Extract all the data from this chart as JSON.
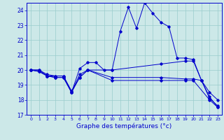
{
  "xlabel": "Graphe des températures (°c)",
  "xlim": [
    -0.5,
    23.5
  ],
  "ylim": [
    17,
    24.5
  ],
  "yticks": [
    17,
    18,
    19,
    20,
    21,
    22,
    23,
    24
  ],
  "xticks": [
    0,
    1,
    2,
    3,
    4,
    5,
    6,
    7,
    8,
    9,
    10,
    11,
    12,
    13,
    14,
    15,
    16,
    17,
    18,
    19,
    20,
    21,
    22,
    23
  ],
  "bg_color": "#cce8e8",
  "line_color": "#0000cc",
  "grid_color": "#99cccc",
  "lines": [
    {
      "x": [
        0,
        1,
        2,
        3,
        4,
        5,
        6,
        7,
        8,
        9,
        10,
        11,
        12,
        13,
        14,
        15,
        16,
        17,
        18,
        19,
        20,
        21,
        22,
        23
      ],
      "y": [
        20.0,
        19.9,
        19.6,
        19.6,
        19.6,
        18.5,
        20.1,
        20.5,
        20.5,
        20.0,
        20.0,
        22.6,
        24.2,
        22.8,
        24.5,
        23.8,
        23.2,
        22.9,
        20.8,
        20.8,
        20.7,
        19.3,
        18.5,
        18.0
      ]
    },
    {
      "x": [
        0,
        1,
        2,
        3,
        4,
        5,
        6,
        7,
        10,
        16,
        19,
        20,
        21,
        22,
        23
      ],
      "y": [
        20.0,
        19.9,
        19.6,
        19.5,
        19.5,
        18.5,
        19.5,
        20.0,
        20.0,
        20.4,
        20.6,
        20.6,
        19.3,
        18.1,
        17.6
      ]
    },
    {
      "x": [
        0,
        1,
        2,
        3,
        4,
        5,
        6,
        7,
        10,
        16,
        19,
        20,
        21,
        22,
        23
      ],
      "y": [
        20.0,
        20.0,
        19.6,
        19.5,
        19.5,
        18.5,
        19.7,
        20.0,
        19.5,
        19.5,
        19.4,
        19.4,
        19.3,
        18.2,
        17.5
      ]
    },
    {
      "x": [
        0,
        1,
        2,
        3,
        4,
        5,
        6,
        7,
        10,
        16,
        19,
        20,
        22,
        23
      ],
      "y": [
        20.0,
        20.0,
        19.7,
        19.6,
        19.6,
        18.6,
        19.5,
        20.0,
        19.3,
        19.3,
        19.3,
        19.3,
        18.0,
        17.5
      ]
    }
  ]
}
